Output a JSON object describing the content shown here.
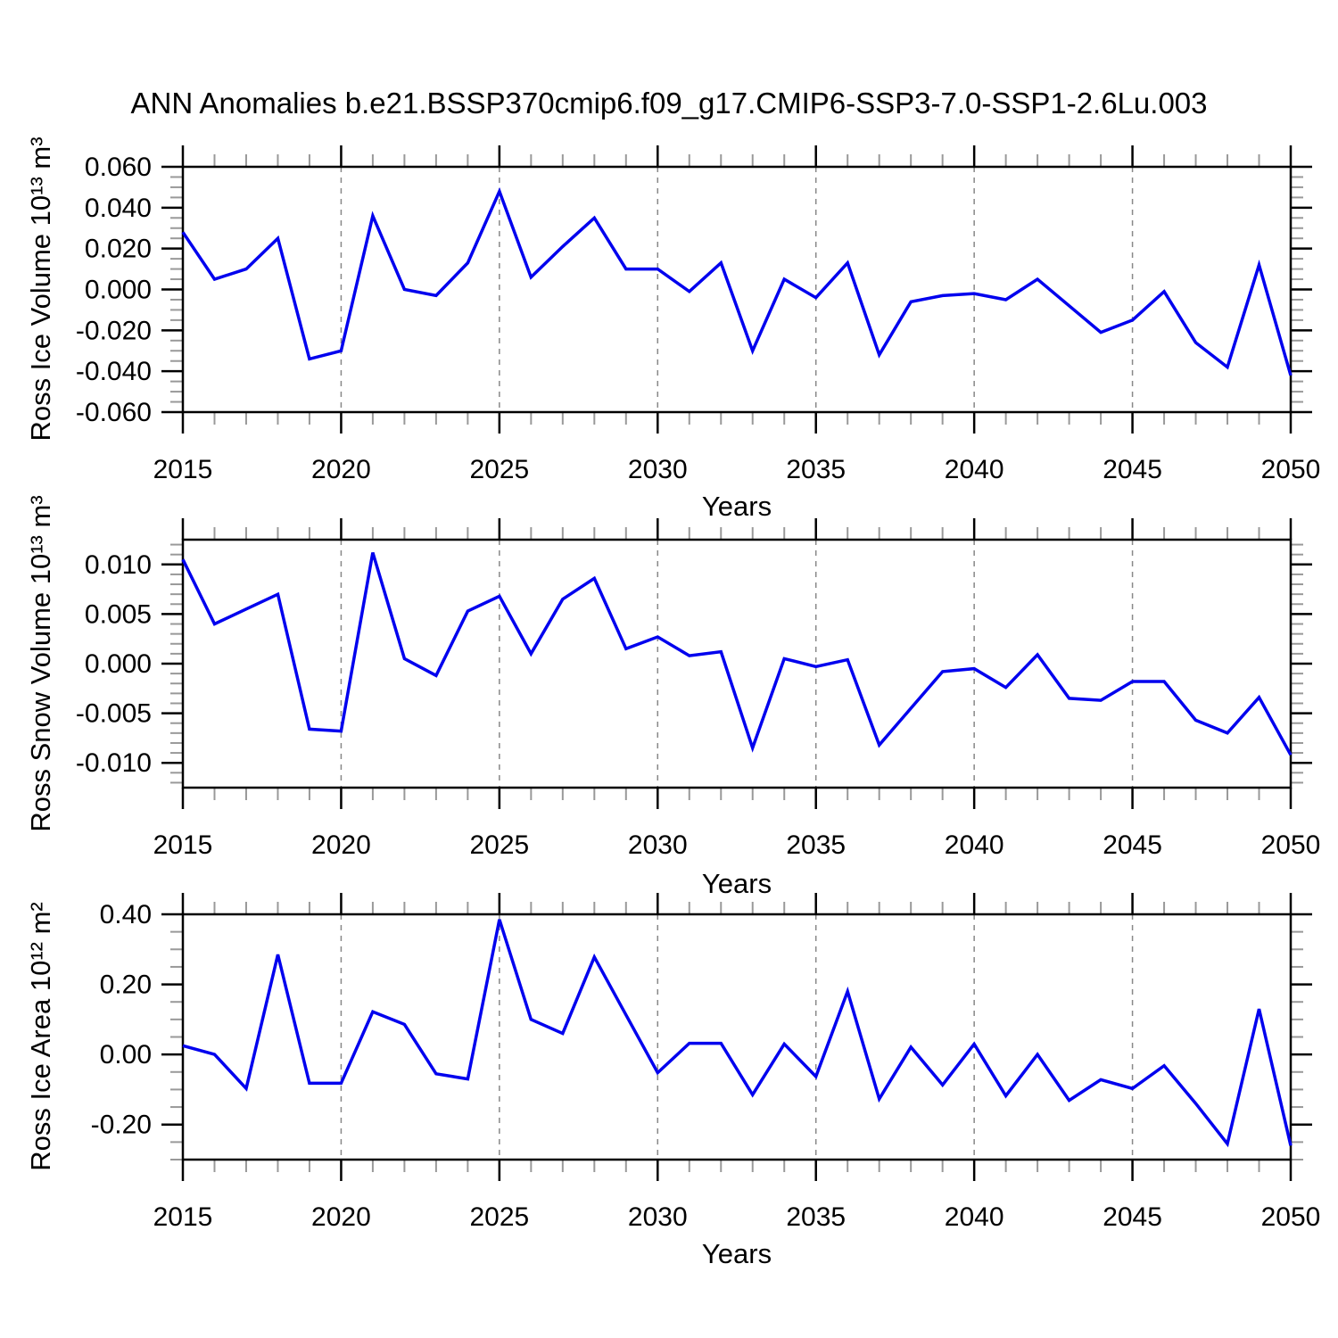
{
  "title": "ANN Anomalies b.e21.BSSP370cmip6.f09_g17.CMIP6-SSP3-7.0-SSP1-2.6Lu.003",
  "colors": {
    "line": "#0000ee",
    "axis": "#000000",
    "minor_tick": "#999999",
    "gridline": "#888888",
    "background": "#ffffff",
    "text": "#000000"
  },
  "x_axis": {
    "label": "Years",
    "years": [
      2015,
      2016,
      2017,
      2018,
      2019,
      2020,
      2021,
      2022,
      2023,
      2024,
      2025,
      2026,
      2027,
      2028,
      2029,
      2030,
      2031,
      2032,
      2033,
      2034,
      2035,
      2036,
      2037,
      2038,
      2039,
      2040,
      2041,
      2042,
      2043,
      2044,
      2045,
      2046,
      2047,
      2048,
      2049,
      2050
    ],
    "major_tick_labels": [
      "2015",
      "2020",
      "2025",
      "2030",
      "2035",
      "2040",
      "2045",
      "2050"
    ],
    "major_step": 5,
    "minor_step": 1,
    "gridline_years": [
      2020,
      2025,
      2030,
      2035,
      2040,
      2045
    ]
  },
  "chart_data": [
    {
      "type": "line",
      "ylabel": "Ross Ice Volume 10¹³ m³",
      "ylim": [
        -0.06,
        0.06
      ],
      "y_major_ticks": [
        0.06,
        0.04,
        0.02,
        0,
        -0.02,
        -0.04,
        -0.06
      ],
      "y_tick_labels": [
        "0.060",
        "0.040",
        "0.020",
        "0.000",
        "-0.020",
        "-0.040",
        "-0.060"
      ],
      "y_minor_step": 0.005,
      "grid": "vertical-dashed",
      "values": [
        0.028,
        0.005,
        0.01,
        0.025,
        -0.034,
        -0.03,
        0.036,
        0.0,
        -0.003,
        0.013,
        0.048,
        0.006,
        0.021,
        0.035,
        0.01,
        0.01,
        -0.001,
        0.013,
        -0.03,
        0.005,
        -0.004,
        0.013,
        -0.032,
        -0.006,
        -0.003,
        -0.002,
        -0.005,
        0.005,
        -0.008,
        -0.021,
        -0.015,
        -0.001,
        -0.026,
        -0.038,
        0.012,
        -0.042
      ]
    },
    {
      "type": "line",
      "ylabel": "Ross Snow Volume 10¹³ m³",
      "ylim": [
        -0.0125,
        0.0125
      ],
      "y_major_ticks": [
        0.01,
        0.005,
        0,
        -0.005,
        -0.01
      ],
      "y_tick_labels": [
        "0.010",
        "0.005",
        "0.000",
        "-0.005",
        "-0.010"
      ],
      "y_minor_step": 0.001,
      "grid": "vertical-dashed",
      "values": [
        0.0105,
        0.004,
        0.0055,
        0.007,
        -0.0066,
        -0.0068,
        0.0112,
        0.0005,
        -0.0012,
        0.0053,
        0.0068,
        0.001,
        0.0065,
        0.0086,
        0.0015,
        0.0027,
        0.0008,
        0.0012,
        -0.0085,
        0.0005,
        -0.0003,
        0.0004,
        -0.0082,
        -0.0045,
        -0.0008,
        -0.0005,
        -0.0024,
        0.0009,
        -0.0035,
        -0.0037,
        -0.0018,
        -0.0018,
        -0.0057,
        -0.007,
        -0.0034,
        -0.0092
      ]
    },
    {
      "type": "line",
      "ylabel": "Ross Ice Area 10¹² m²",
      "ylim": [
        -0.3,
        0.4
      ],
      "y_major_ticks": [
        0.4,
        0.2,
        0,
        -0.2
      ],
      "y_tick_labels": [
        "0.40",
        "0.20",
        "0.00",
        "-0.20"
      ],
      "y_minor_step": 0.05,
      "grid": "vertical-dashed",
      "values": [
        0.025,
        0.0,
        -0.097,
        0.285,
        -0.082,
        -0.082,
        0.122,
        0.086,
        -0.055,
        -0.07,
        0.385,
        0.1,
        0.06,
        0.278,
        0.113,
        -0.052,
        0.032,
        0.032,
        -0.115,
        0.03,
        -0.063,
        0.18,
        -0.127,
        0.021,
        -0.087,
        0.03,
        -0.118,
        0.0,
        -0.131,
        -0.072,
        -0.097,
        -0.032,
        -0.14,
        -0.255,
        0.13,
        -0.26
      ]
    }
  ]
}
